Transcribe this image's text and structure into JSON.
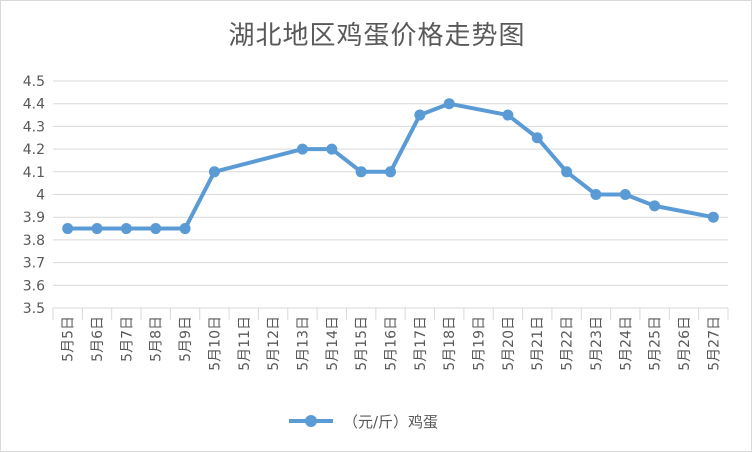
{
  "chart_data": {
    "type": "line",
    "title": "湖北地区鸡蛋价格走势图",
    "categories": [
      "5月5日",
      "5月6日",
      "5月7日",
      "5月8日",
      "5月9日",
      "5月10日",
      "5月11日",
      "5月12日",
      "5月13日",
      "5月14日",
      "5月15日",
      "5月16日",
      "5月17日",
      "5月18日",
      "5月19日",
      "5月20日",
      "5月21日",
      "5月22日",
      "5月23日",
      "5月24日",
      "5月25日",
      "5月26日",
      "5月27日"
    ],
    "series": [
      {
        "name": "（元/斤）鸡蛋",
        "color": "#5b9bd5",
        "values": [
          3.85,
          3.85,
          3.85,
          3.85,
          3.85,
          4.1,
          null,
          null,
          4.2,
          4.2,
          4.1,
          4.1,
          4.35,
          4.4,
          null,
          4.35,
          4.25,
          4.1,
          4.0,
          4.0,
          3.95,
          null,
          3.9
        ]
      }
    ],
    "ylim": [
      3.5,
      4.5
    ],
    "yticks": [
      "3.5",
      "3.6",
      "3.7",
      "3.8",
      "3.9",
      "4",
      "4.1",
      "4.2",
      "4.3",
      "4.4",
      "4.5"
    ],
    "grid": true,
    "legend": "bottom"
  }
}
